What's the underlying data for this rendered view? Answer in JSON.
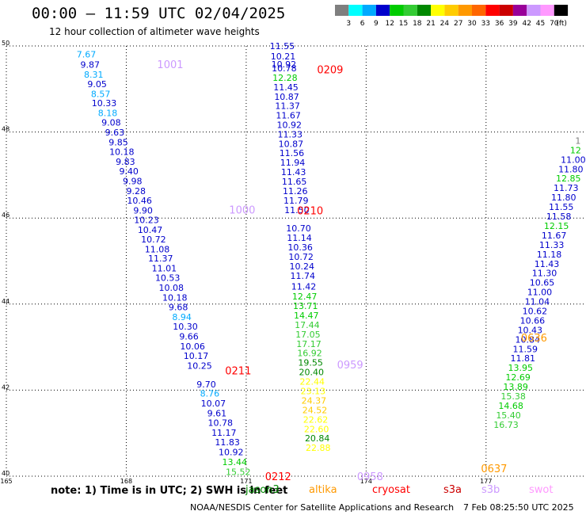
{
  "title": "00:00 – 11:59 UTC 02/04/2025",
  "subtitle": "12 hour collection of altimeter wave heights",
  "colorbar": {
    "unit": "(ft)",
    "bins": [
      {
        "label": "3",
        "color": "#7f7f7f"
      },
      {
        "label": "6",
        "color": "#00ffff"
      },
      {
        "label": "9",
        "color": "#00aaff"
      },
      {
        "label": "12",
        "color": "#0000cc"
      },
      {
        "label": "15",
        "color": "#00cc00"
      },
      {
        "label": "18",
        "color": "#33cc33"
      },
      {
        "label": "21",
        "color": "#008800"
      },
      {
        "label": "24",
        "color": "#ffff00"
      },
      {
        "label": "27",
        "color": "#ffcc00"
      },
      {
        "label": "30",
        "color": "#ff9900"
      },
      {
        "label": "33",
        "color": "#ff6600"
      },
      {
        "label": "36",
        "color": "#ff0000"
      },
      {
        "label": "39",
        "color": "#cc0000"
      },
      {
        "label": "42",
        "color": "#990099"
      },
      {
        "label": "45",
        "color": "#cc99ff"
      },
      {
        "label": "70",
        "color": "#ff99ff"
      },
      {
        "label": "",
        "color": "#000000"
      }
    ]
  },
  "chart_data": {
    "type": "scatter",
    "title": "00:00 – 11:59 UTC 02/04/2025",
    "xlim": [
      165,
      179.5
    ],
    "ylim": [
      40,
      50
    ],
    "x_ticks": [
      "165",
      "168",
      "171",
      "174",
      "177"
    ],
    "y_ticks": [
      "50",
      "48",
      "46",
      "44",
      "42",
      "40"
    ],
    "grid": true,
    "tracks": [
      {
        "name": "track_west",
        "points": [
          [
            7.67,
            49.81
          ],
          [
            9.87,
            49.57
          ],
          [
            8.31,
            49.34
          ],
          [
            9.05,
            49.12
          ],
          [
            8.57,
            48.89
          ],
          [
            10.33,
            48.67
          ],
          [
            8.18,
            48.44
          ],
          [
            9.08,
            48.22
          ],
          [
            9.63,
            47.99
          ],
          [
            9.85,
            47.76
          ],
          [
            10.18,
            47.54
          ],
          [
            9.83,
            47.31
          ],
          [
            9.4,
            47.09
          ],
          [
            9.98,
            46.86
          ],
          [
            9.28,
            46.63
          ],
          [
            10.46,
            46.41
          ],
          [
            9.9,
            46.18
          ],
          [
            10.23,
            45.96
          ],
          [
            10.47,
            45.73
          ],
          [
            10.72,
            45.51
          ],
          [
            11.08,
            45.28
          ],
          [
            11.37,
            45.06
          ],
          [
            11.01,
            44.83
          ],
          [
            10.53,
            44.61
          ],
          [
            10.08,
            44.38
          ],
          [
            10.18,
            44.15
          ],
          [
            9.68,
            43.93
          ],
          [
            8.94,
            43.7
          ],
          [
            10.3,
            43.48
          ],
          [
            9.66,
            43.25
          ],
          [
            10.06,
            43.02
          ],
          [
            10.17,
            42.8
          ],
          [
            10.25,
            42.57
          ],
          [
            9.7,
            42.14
          ],
          [
            8.76,
            41.92
          ],
          [
            10.07,
            41.69
          ],
          [
            9.61,
            41.46
          ],
          [
            10.78,
            41.24
          ],
          [
            11.17,
            41.01
          ],
          [
            11.83,
            40.79
          ],
          [
            10.92,
            40.56
          ],
          [
            13.44,
            40.33
          ],
          [
            15.52,
            40.1
          ]
        ],
        "x_start": 167.0,
        "x_end": 170.8
      },
      {
        "name": "track_mid",
        "points": [
          [
            11.55,
            50.0
          ],
          [
            10.21,
            49.76
          ],
          [
            10.92,
            49.58
          ],
          [
            10.78,
            49.48
          ],
          [
            12.28,
            49.26
          ],
          [
            11.45,
            49.04
          ],
          [
            10.87,
            48.82
          ],
          [
            11.37,
            48.61
          ],
          [
            11.67,
            48.39
          ],
          [
            10.92,
            48.17
          ],
          [
            11.33,
            47.95
          ],
          [
            10.87,
            47.73
          ],
          [
            11.56,
            47.51
          ],
          [
            11.94,
            47.29
          ],
          [
            11.43,
            47.07
          ],
          [
            11.65,
            46.85
          ],
          [
            11.26,
            46.63
          ],
          [
            11.79,
            46.41
          ],
          [
            11.5,
            46.19
          ],
          [
            10.7,
            45.76
          ],
          [
            11.14,
            45.54
          ],
          [
            10.36,
            45.32
          ],
          [
            10.72,
            45.1
          ],
          [
            10.24,
            44.88
          ],
          [
            11.74,
            44.66
          ],
          [
            11.42,
            44.41
          ],
          [
            12.47,
            44.18
          ],
          [
            13.71,
            43.96
          ],
          [
            14.47,
            43.74
          ],
          [
            17.44,
            43.52
          ],
          [
            17.05,
            43.3
          ],
          [
            17.17,
            43.08
          ],
          [
            16.92,
            42.86
          ],
          [
            19.55,
            42.64
          ],
          [
            20.4,
            42.42
          ],
          [
            22.44,
            42.2
          ],
          [
            23.13,
            41.98
          ],
          [
            24.37,
            41.76
          ],
          [
            24.52,
            41.54
          ],
          [
            22.62,
            41.32
          ],
          [
            22.6,
            41.1
          ],
          [
            20.84,
            40.88
          ],
          [
            22.88,
            40.66
          ]
        ],
        "x_start": 171.9,
        "x_end": 172.8
      },
      {
        "name": "track_east",
        "points": [
          [
            1,
            47.8
          ],
          [
            12,
            47.58
          ],
          [
            11,
            47.36
          ],
          [
            11.8,
            47.14
          ],
          [
            12.85,
            46.92
          ],
          [
            11.73,
            46.7
          ],
          [
            11.8,
            46.48
          ],
          [
            11.55,
            46.26
          ],
          [
            11.58,
            46.04
          ],
          [
            12.15,
            45.82
          ],
          [
            11.67,
            45.6
          ],
          [
            11.33,
            45.38
          ],
          [
            11.18,
            45.16
          ],
          [
            11.43,
            44.94
          ],
          [
            11.3,
            44.72
          ],
          [
            10.65,
            44.5
          ],
          [
            11.0,
            44.28
          ],
          [
            11.04,
            44.06
          ],
          [
            10.62,
            43.84
          ],
          [
            10.66,
            43.62
          ],
          [
            10.43,
            43.4
          ],
          [
            10.84,
            43.18
          ],
          [
            11.59,
            42.96
          ],
          [
            11.81,
            42.74
          ],
          [
            13.95,
            42.52
          ],
          [
            12.69,
            42.3
          ],
          [
            13.89,
            42.08
          ],
          [
            15.38,
            41.86
          ],
          [
            14.68,
            41.64
          ],
          [
            15.4,
            41.42
          ],
          [
            16.73,
            41.2
          ]
        ],
        "x_start": 179.3,
        "x_end": 177.5
      }
    ],
    "time_labels": [
      {
        "text": "1001",
        "x": 169.1,
        "y": 49.58,
        "color": "#cc99ff"
      },
      {
        "text": "0209",
        "x": 173.1,
        "y": 49.46,
        "color": "#ff0000"
      },
      {
        "text": "1000",
        "x": 170.9,
        "y": 46.2,
        "color": "#cc99ff"
      },
      {
        "text": "0210",
        "x": 172.6,
        "y": 46.18,
        "color": "#ff0000"
      },
      {
        "text": "0959",
        "x": 173.6,
        "y": 42.6,
        "color": "#cc99ff"
      },
      {
        "text": "0211",
        "x": 170.8,
        "y": 42.46,
        "color": "#ff0000"
      },
      {
        "text": "0958",
        "x": 174.1,
        "y": 40.0,
        "color": "#cc99ff"
      },
      {
        "text": "0212",
        "x": 171.8,
        "y": 40.0,
        "color": "#ff0000"
      },
      {
        "text": "0636",
        "x": 178.2,
        "y": 43.22,
        "color": "#ff9900"
      },
      {
        "text": "0637",
        "x": 177.2,
        "y": 40.18,
        "color": "#ff9900"
      }
    ]
  },
  "note": "note:  1) Time is in UTC;  2) SWH is in feet",
  "legend": [
    {
      "label": "jason3",
      "color": "#008800"
    },
    {
      "label": "altika",
      "color": "#ff9900"
    },
    {
      "label": "cryosat",
      "color": "#ff0000"
    },
    {
      "label": "s3a",
      "color": "#cc0000"
    },
    {
      "label": "s3b",
      "color": "#cc99ff"
    },
    {
      "label": "swot",
      "color": "#ff99ff"
    }
  ],
  "credit": "NOAA/NESDIS Center for Satellite Applications and Research",
  "timestamp": "7 Feb 08:25:50 UTC 2025"
}
